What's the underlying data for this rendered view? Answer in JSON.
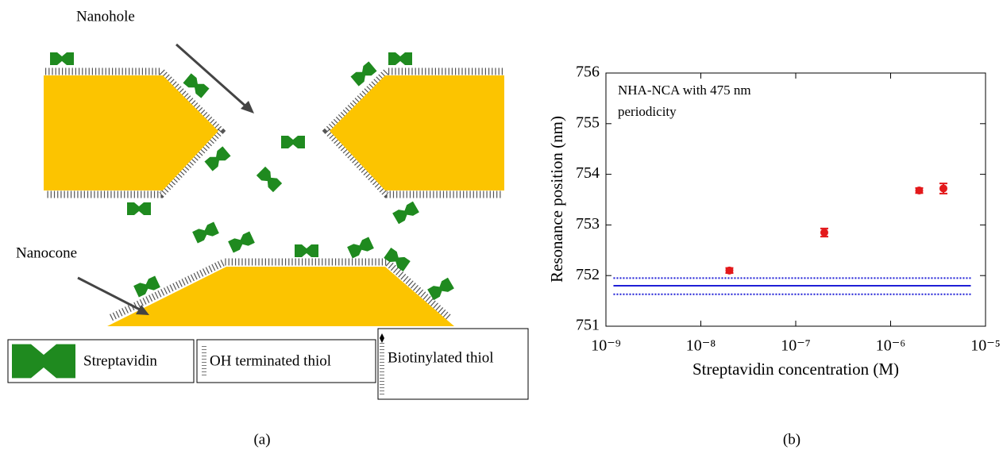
{
  "diagram": {
    "nanohole_label": "Nanohole",
    "nanocone_label": "Nanocone",
    "legend": [
      "Streptavidin",
      "OH terminated thiol",
      "Biotinylated thiol"
    ],
    "caption": "(a)"
  },
  "chart_data": {
    "type": "scatter",
    "annotation": [
      "NHA-NCA with 475 nm",
      "periodicity"
    ],
    "x_label": "Streptavidin concentration (M)",
    "y_label": "Resonance position (nm)",
    "caption": "(b)",
    "xscale": "log",
    "xlim": [
      1e-09,
      1e-05
    ],
    "xticks": [
      {
        "value": 1e-09,
        "label": "10⁻⁹"
      },
      {
        "value": 1e-08,
        "label": "10⁻⁸"
      },
      {
        "value": 1e-07,
        "label": "10⁻⁷"
      },
      {
        "value": 1e-06,
        "label": "10⁻⁶"
      },
      {
        "value": 1e-05,
        "label": "10⁻⁵"
      }
    ],
    "ylim": [
      751,
      756
    ],
    "yticks": [
      751,
      752,
      753,
      754,
      755,
      756
    ],
    "x": [
      2e-08,
      2e-07,
      2e-06,
      3.6e-06
    ],
    "series": [
      {
        "color": "#e3191b",
        "values": [
          752.1,
          752.85,
          753.68,
          753.72
        ],
        "errors": [
          0.05,
          0.08,
          0.05,
          0.1
        ]
      }
    ],
    "reference_lines": {
      "color": "#1f1fd6",
      "x": [
        1.2e-09,
        7e-06
      ],
      "lines": [
        {
          "y": 751.95,
          "style": "dotted"
        },
        {
          "y": 751.8,
          "style": "solid"
        },
        {
          "y": 751.63,
          "style": "dotted"
        }
      ]
    }
  }
}
